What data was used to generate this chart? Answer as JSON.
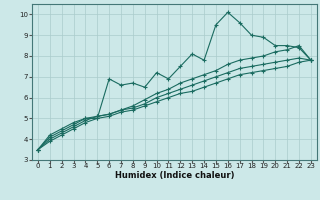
{
  "xlabel": "Humidex (Indice chaleur)",
  "xlim": [
    -0.5,
    23.5
  ],
  "ylim": [
    3.0,
    10.5
  ],
  "yticks": [
    3,
    4,
    5,
    6,
    7,
    8,
    9,
    10
  ],
  "xticks": [
    0,
    1,
    2,
    3,
    4,
    5,
    6,
    7,
    8,
    9,
    10,
    11,
    12,
    13,
    14,
    15,
    16,
    17,
    18,
    19,
    20,
    21,
    22,
    23
  ],
  "background_color": "#cce8e8",
  "grid_color": "#aacccc",
  "line_color": "#1a6b60",
  "series": [
    [
      3.5,
      4.2,
      4.5,
      4.8,
      5.0,
      5.0,
      6.9,
      6.6,
      6.7,
      6.5,
      7.2,
      6.9,
      7.5,
      8.1,
      7.8,
      9.5,
      10.1,
      9.6,
      9.0,
      8.9,
      8.5,
      8.5,
      8.4,
      7.8
    ],
    [
      3.5,
      4.1,
      4.4,
      4.7,
      5.0,
      5.1,
      5.2,
      5.4,
      5.6,
      5.9,
      6.2,
      6.4,
      6.7,
      6.9,
      7.1,
      7.3,
      7.6,
      7.8,
      7.9,
      8.0,
      8.2,
      8.3,
      8.5,
      7.8
    ],
    [
      3.5,
      4.0,
      4.3,
      4.6,
      4.9,
      5.1,
      5.2,
      5.4,
      5.5,
      5.7,
      6.0,
      6.2,
      6.4,
      6.6,
      6.8,
      7.0,
      7.2,
      7.4,
      7.5,
      7.6,
      7.7,
      7.8,
      7.9,
      7.8
    ],
    [
      3.5,
      3.9,
      4.2,
      4.5,
      4.8,
      5.0,
      5.1,
      5.3,
      5.4,
      5.6,
      5.8,
      6.0,
      6.2,
      6.3,
      6.5,
      6.7,
      6.9,
      7.1,
      7.2,
      7.3,
      7.4,
      7.5,
      7.7,
      7.8
    ]
  ]
}
